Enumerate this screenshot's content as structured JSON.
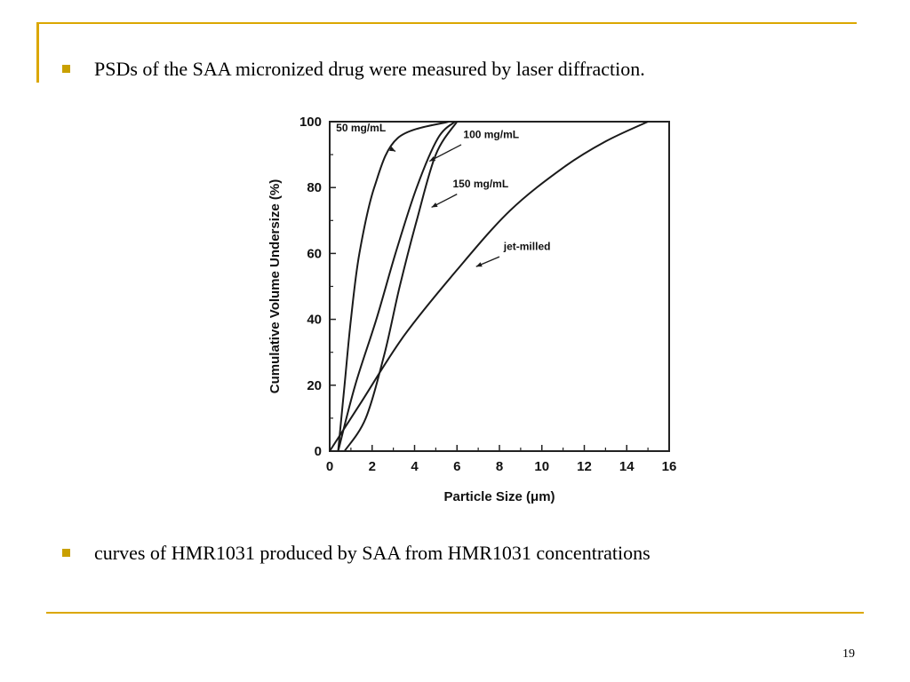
{
  "slide": {
    "bullets": [
      "PSDs of the SAA micronized drug were measured by laser diffraction.",
      "curves of HMR1031 produced by SAA from HMR1031 concentrations"
    ],
    "page_number": "19",
    "accent_color": "#dba700",
    "bullet_color": "#c9a000"
  },
  "chart_data": {
    "type": "line",
    "xlabel": "Particle Size (μm)",
    "ylabel": "Cumulative Volume Undersize (%)",
    "xlim": [
      0,
      16
    ],
    "ylim": [
      0,
      100
    ],
    "x_ticks": [
      0,
      2,
      4,
      6,
      8,
      10,
      12,
      14,
      16
    ],
    "y_ticks": [
      0,
      20,
      40,
      60,
      80,
      100
    ],
    "grid": false,
    "series": [
      {
        "name": "50 mg/mL",
        "points": [
          [
            0.4,
            0
          ],
          [
            0.7,
            20
          ],
          [
            1.0,
            40
          ],
          [
            1.4,
            60
          ],
          [
            2.1,
            80
          ],
          [
            3.2,
            95
          ],
          [
            5.6,
            100
          ]
        ]
      },
      {
        "name": "100 mg/mL",
        "points": [
          [
            0.4,
            0
          ],
          [
            1.2,
            20
          ],
          [
            2.2,
            40
          ],
          [
            3.1,
            60
          ],
          [
            4.1,
            80
          ],
          [
            5.1,
            95
          ],
          [
            5.9,
            100
          ]
        ]
      },
      {
        "name": "150 mg/mL",
        "points": [
          [
            0.7,
            0
          ],
          [
            1.7,
            10
          ],
          [
            2.6,
            30
          ],
          [
            3.3,
            50
          ],
          [
            4.1,
            70
          ],
          [
            5.0,
            90
          ],
          [
            6.0,
            100
          ]
        ]
      },
      {
        "name": "jet-milled",
        "points": [
          [
            0,
            0
          ],
          [
            1.5,
            15
          ],
          [
            3.5,
            35
          ],
          [
            6,
            55
          ],
          [
            8.5,
            73
          ],
          [
            11,
            86
          ],
          [
            13,
            94
          ],
          [
            15,
            100
          ]
        ]
      }
    ],
    "annotations": [
      {
        "label": "50 mg/mL",
        "text_at": [
          0.3,
          97
        ],
        "arrow_from": [
          2.8,
          92
        ],
        "arrow_to": [
          3.1,
          91
        ]
      },
      {
        "label": "100 mg/mL",
        "text_at": [
          6.3,
          95
        ],
        "arrow_from": [
          6.2,
          93
        ],
        "arrow_to": [
          4.7,
          88
        ]
      },
      {
        "label": "150 mg/mL",
        "text_at": [
          5.8,
          80
        ],
        "arrow_from": [
          6.0,
          78
        ],
        "arrow_to": [
          4.8,
          74
        ]
      },
      {
        "label": "jet-milled",
        "text_at": [
          8.2,
          61
        ],
        "arrow_from": [
          8.0,
          59
        ],
        "arrow_to": [
          6.9,
          56
        ]
      }
    ]
  }
}
